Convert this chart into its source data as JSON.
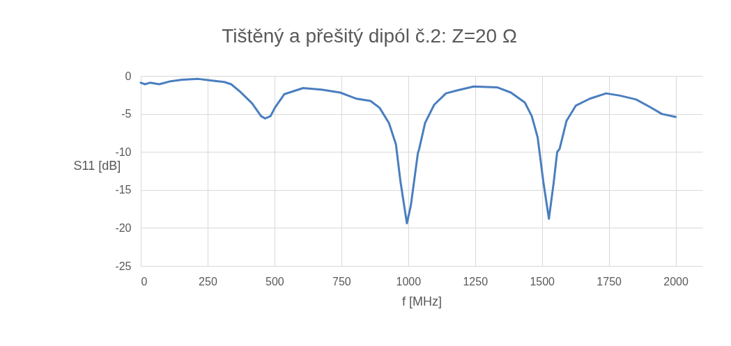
{
  "chart_data": {
    "type": "line",
    "title": "Tištěný a přešitý dipól č.2: Z=20 Ω",
    "xlabel": "f [MHz]",
    "ylabel": "S11 [dB]",
    "x": [
      0,
      16,
      34,
      69,
      112,
      155,
      216,
      260,
      312,
      338,
      372,
      416,
      450,
      465,
      485,
      503,
      537,
      607,
      676,
      746,
      806,
      859,
      893,
      928,
      954,
      971,
      995,
      1010,
      1036,
      1041,
      1063,
      1097,
      1141,
      1184,
      1245,
      1332,
      1384,
      1436,
      1462,
      1484,
      1505,
      1526,
      1544,
      1557,
      1566,
      1592,
      1627,
      1679,
      1740,
      1792,
      1852,
      1904,
      1948,
      2000
    ],
    "series": [
      {
        "color": "#4a7ebf",
        "values": [
          -0.9,
          -1.1,
          -0.9,
          -1.1,
          -0.7,
          -0.5,
          -0.4,
          -0.6,
          -0.8,
          -1.1,
          -2.1,
          -3.6,
          -5.3,
          -5.6,
          -5.3,
          -4.1,
          -2.4,
          -1.6,
          -1.8,
          -2.2,
          -3.0,
          -3.3,
          -4.2,
          -6.2,
          -9.0,
          -13.9,
          -19.4,
          -17.0,
          -10.2,
          -9.6,
          -6.2,
          -3.8,
          -2.3,
          -1.9,
          -1.4,
          -1.5,
          -2.2,
          -3.5,
          -5.3,
          -8.1,
          -13.9,
          -18.8,
          -14.0,
          -10.0,
          -9.6,
          -5.9,
          -3.9,
          -3.0,
          -2.3,
          -2.6,
          -3.1,
          -4.1,
          -5.0,
          -5.4
        ]
      }
    ],
    "xlim": [
      0,
      2100
    ],
    "xticks": [
      0,
      250,
      500,
      750,
      1000,
      1250,
      1500,
      1750,
      2000
    ],
    "ylim": [
      -25,
      0
    ],
    "yticks": [
      -25,
      -20,
      -15,
      -10,
      -5,
      0
    ],
    "grid": true,
    "line_style": "solid",
    "marker": "none"
  }
}
